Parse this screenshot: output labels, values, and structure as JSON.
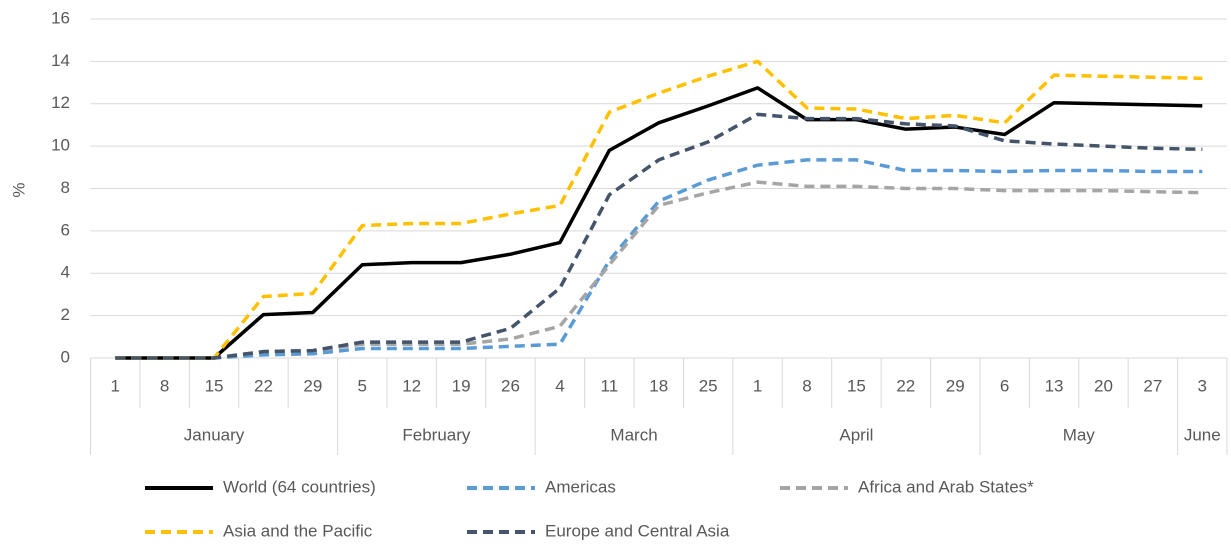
{
  "chart_data": {
    "type": "line",
    "y_label": "%",
    "category_groups": [
      {
        "name": "January",
        "categories": [
          "1",
          "8",
          "15",
          "22",
          "29"
        ]
      },
      {
        "name": "February",
        "categories": [
          "5",
          "12",
          "19",
          "26"
        ]
      },
      {
        "name": "March",
        "categories": [
          "4",
          "11",
          "18",
          "25"
        ]
      },
      {
        "name": "April",
        "categories": [
          "1",
          "8",
          "15",
          "22",
          "29"
        ]
      },
      {
        "name": "May",
        "categories": [
          "6",
          "13",
          "20",
          "27"
        ]
      },
      {
        "name": "June",
        "categories": [
          "3"
        ]
      }
    ],
    "series": [
      {
        "name": "World (64 countries)",
        "color": "#000000",
        "line_style": "solid",
        "values": [
          0,
          0,
          0,
          2.05,
          2.15,
          4.4,
          4.5,
          4.5,
          4.9,
          5.45,
          9.8,
          11.1,
          11.9,
          12.75,
          11.25,
          11.25,
          10.8,
          10.9,
          10.55,
          12.05,
          12.0,
          11.95,
          11.9
        ]
      },
      {
        "name": "Americas",
        "color": "#5b9bd5",
        "line_style": "dashed",
        "values": [
          0,
          0,
          0,
          0.15,
          0.2,
          0.45,
          0.45,
          0.45,
          0.55,
          0.65,
          4.6,
          7.4,
          8.4,
          9.1,
          9.35,
          9.35,
          8.85,
          8.85,
          8.8,
          8.85,
          8.85,
          8.8,
          8.8
        ]
      },
      {
        "name": "Africa and Arab States*",
        "color": "#a5a5a5",
        "line_style": "dashed",
        "values": [
          0,
          0,
          0,
          0.3,
          0.35,
          0.65,
          0.65,
          0.65,
          0.9,
          1.5,
          4.4,
          7.2,
          7.8,
          8.3,
          8.1,
          8.1,
          8.0,
          8.0,
          7.9,
          7.9,
          7.9,
          7.85,
          7.8
        ]
      },
      {
        "name": "Asia and the Pacific",
        "color": "#ffc000",
        "line_style": "dashed",
        "values": [
          0,
          0,
          0,
          2.9,
          3.05,
          6.25,
          6.35,
          6.35,
          6.8,
          7.2,
          11.6,
          12.5,
          13.3,
          14.0,
          11.8,
          11.75,
          11.3,
          11.45,
          11.1,
          13.35,
          13.3,
          13.25,
          13.2
        ]
      },
      {
        "name": "Europe and Central Asia",
        "color": "#44546a",
        "line_style": "dashed",
        "values": [
          0,
          0,
          0,
          0.3,
          0.35,
          0.75,
          0.75,
          0.75,
          1.4,
          3.3,
          7.7,
          9.35,
          10.2,
          11.5,
          11.3,
          11.3,
          11.05,
          10.95,
          10.25,
          10.1,
          10.0,
          9.9,
          9.85
        ]
      }
    ],
    "ylim": [
      0,
      16
    ],
    "yticks": [
      0,
      2,
      4,
      6,
      8,
      10,
      12,
      14,
      16
    ],
    "grid": true,
    "legend": "bottom"
  }
}
